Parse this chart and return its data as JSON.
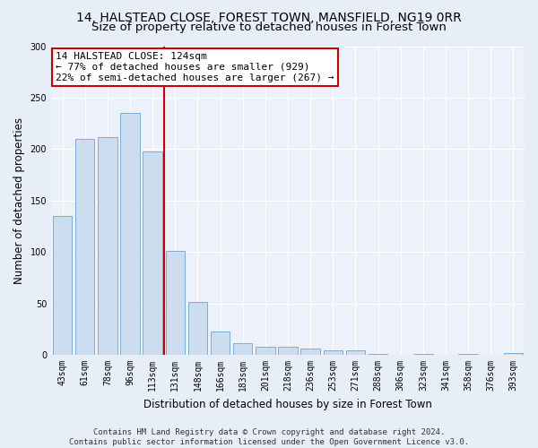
{
  "title1": "14, HALSTEAD CLOSE, FOREST TOWN, MANSFIELD, NG19 0RR",
  "title2": "Size of property relative to detached houses in Forest Town",
  "xlabel": "Distribution of detached houses by size in Forest Town",
  "ylabel": "Number of detached properties",
  "categories": [
    "43sqm",
    "61sqm",
    "78sqm",
    "96sqm",
    "113sqm",
    "131sqm",
    "148sqm",
    "166sqm",
    "183sqm",
    "201sqm",
    "218sqm",
    "236sqm",
    "253sqm",
    "271sqm",
    "288sqm",
    "306sqm",
    "323sqm",
    "341sqm",
    "358sqm",
    "376sqm",
    "393sqm"
  ],
  "values": [
    135,
    210,
    212,
    235,
    198,
    101,
    51,
    23,
    11,
    8,
    8,
    6,
    4,
    4,
    1,
    0,
    1,
    0,
    1,
    0,
    2
  ],
  "bar_color": "#ccddf0",
  "bar_edge_color": "#7aafd4",
  "vline_x_idx": 4,
  "vline_color": "#cc0000",
  "annotation_line1": "14 HALSTEAD CLOSE: 124sqm",
  "annotation_line2": "← 77% of detached houses are smaller (929)",
  "annotation_line3": "22% of semi-detached houses are larger (267) →",
  "annotation_box_color": "white",
  "annotation_box_edge_color": "#cc0000",
  "ylim": [
    0,
    300
  ],
  "yticks": [
    0,
    50,
    100,
    150,
    200,
    250,
    300
  ],
  "footer_line1": "Contains HM Land Registry data © Crown copyright and database right 2024.",
  "footer_line2": "Contains public sector information licensed under the Open Government Licence v3.0.",
  "bg_color": "#e8eef8",
  "plot_bg_color": "#edf2fa",
  "grid_color": "#ffffff",
  "title_fontsize": 10,
  "subtitle_fontsize": 9.5,
  "tick_fontsize": 7,
  "ylabel_fontsize": 8.5,
  "xlabel_fontsize": 8.5,
  "footer_fontsize": 6.5,
  "annotation_fontsize": 8
}
